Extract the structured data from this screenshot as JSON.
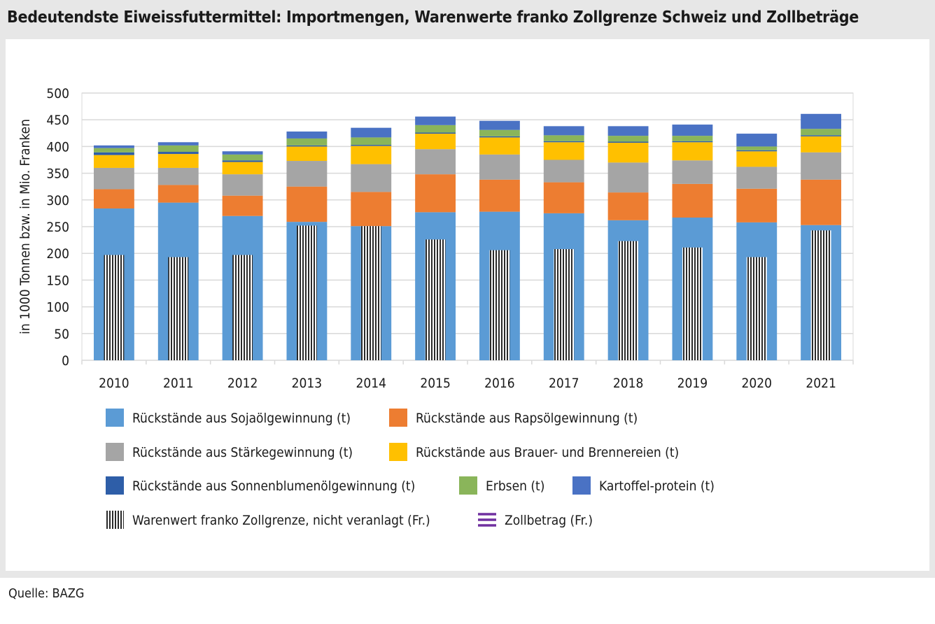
{
  "title": "Bedeutendste Eiweissfuttermittel: Importmengen, Warenwerte franko Zollgrenze Schweiz und Zollbeträge",
  "source": "Quelle: BAZG",
  "chart_data": {
    "type": "bar",
    "stacked": true,
    "categories": [
      "2010",
      "2011",
      "2012",
      "2013",
      "2014",
      "2015",
      "2016",
      "2017",
      "2018",
      "2019",
      "2020",
      "2021"
    ],
    "ylabel": "in 1000 Tonnen bzw. in Mio. Franken",
    "ylim": [
      0,
      500
    ],
    "yticks": [
      0,
      50,
      100,
      150,
      200,
      250,
      300,
      350,
      400,
      450,
      500
    ],
    "grid": true,
    "legend_position": "bottom",
    "series": [
      {
        "name": "Rückstände aus Sojaölgewinnung (t)",
        "color": "#5b9bd5",
        "values": [
          284,
          295,
          270,
          259,
          251,
          277,
          278,
          275,
          262,
          267,
          258,
          253
        ]
      },
      {
        "name": "Rückstände aus Rapsölgewinnung (t)",
        "color": "#ed7d31",
        "values": [
          36,
          33,
          38,
          66,
          64,
          71,
          60,
          58,
          52,
          63,
          63,
          85
        ]
      },
      {
        "name": "Rückstände aus Stärkegewinnung (t)",
        "color": "#a5a5a5",
        "values": [
          40,
          32,
          40,
          48,
          52,
          47,
          47,
          42,
          56,
          44,
          41,
          51
        ]
      },
      {
        "name": "Rückstände aus Brauer- und Brennereien (t)",
        "color": "#ffc000",
        "values": [
          24,
          26,
          23,
          27,
          34,
          29,
          32,
          33,
          37,
          34,
          29,
          30
        ]
      },
      {
        "name": "Rückstände aus Sonnenblumenölgewinnung (t)",
        "color": "#2e5ea8",
        "values": [
          5,
          4,
          3,
          2,
          2,
          2,
          2,
          2,
          2,
          2,
          2,
          2
        ]
      },
      {
        "name": "Erbsen (t)",
        "color": "#8ab55a",
        "values": [
          8,
          12,
          11,
          13,
          14,
          14,
          12,
          11,
          11,
          10,
          7,
          12
        ]
      },
      {
        "name": "Kartoffel-protein (t)",
        "color": "#4a72c4",
        "values": [
          5,
          6,
          6,
          13,
          18,
          16,
          17,
          17,
          18,
          21,
          24,
          28
        ]
      }
    ],
    "overlay_series": {
      "name": "Warenwert franko Zollgrenze, nicht veranlagt (Fr.)",
      "pattern": "vertical-stripes",
      "values": [
        197,
        193,
        197,
        252,
        251,
        226,
        206,
        208,
        223,
        211,
        193,
        243
      ]
    },
    "line_series": {
      "name": "Zollbetrag (Fr.)",
      "color": "#7030a0",
      "values": [
        0,
        0,
        0,
        0,
        0,
        0,
        0,
        0,
        0,
        0,
        0,
        0
      ]
    }
  }
}
